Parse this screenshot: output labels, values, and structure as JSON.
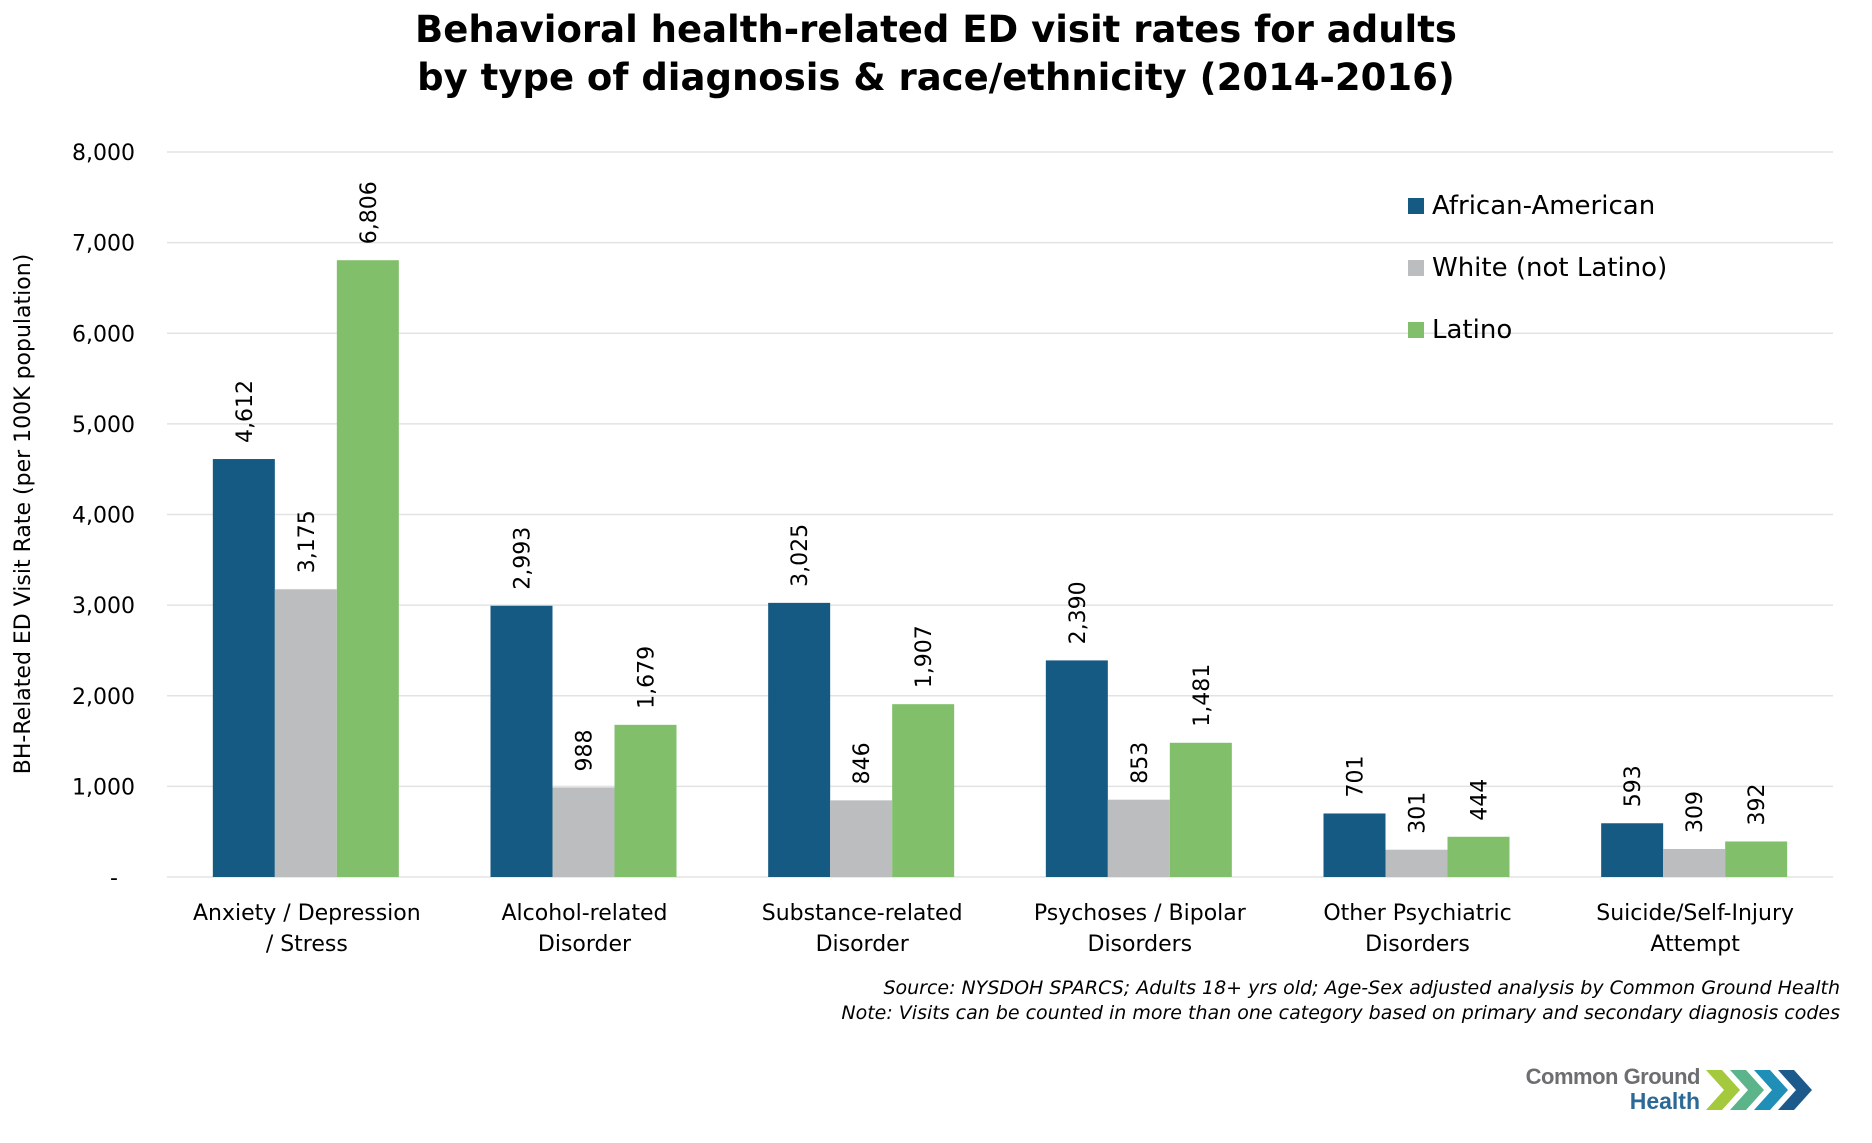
{
  "chart_data": {
    "type": "bar",
    "title": [
      "Behavioral health-related ED visit rates for adults",
      "by type of diagnosis & race/ethnicity (2014-2016)"
    ],
    "xlabel": "",
    "ylabel": "BH-Related ED Visit Rate (per 100K population)",
    "ylim": [
      0,
      8000
    ],
    "yticks": [
      0,
      1000,
      2000,
      3000,
      4000,
      5000,
      6000,
      7000,
      8000
    ],
    "ytick_labels": [
      "-",
      "1,000",
      "2,000",
      "3,000",
      "4,000",
      "5,000",
      "6,000",
      "7,000",
      "8,000"
    ],
    "grid": true,
    "legend_position": "top-right",
    "categories": [
      [
        "Anxiety / Depression",
        "/ Stress"
      ],
      [
        "Alcohol-related",
        "Disorder"
      ],
      [
        "Substance-related",
        "Disorder"
      ],
      [
        "Psychoses / Bipolar",
        "Disorders"
      ],
      [
        "Other Psychiatric",
        "Disorders"
      ],
      [
        "Suicide/Self-Injury",
        "Attempt"
      ]
    ],
    "series": [
      {
        "name": "African-American",
        "color": "#155a82",
        "values": [
          4612,
          2993,
          3025,
          2390,
          701,
          593
        ],
        "labels": [
          "4,612",
          "2,993",
          "3,025",
          "2,390",
          "701",
          "593"
        ]
      },
      {
        "name": "White (not Latino)",
        "color": "#bcbdbf",
        "values": [
          3175,
          988,
          846,
          853,
          301,
          309
        ],
        "labels": [
          "3,175",
          "988",
          "846",
          "853",
          "301",
          "309"
        ]
      },
      {
        "name": "Latino",
        "color": "#81bf6b",
        "values": [
          6806,
          1679,
          1907,
          1481,
          444,
          392
        ],
        "labels": [
          "6,806",
          "1,679",
          "1,907",
          "1,481",
          "444",
          "392"
        ]
      }
    ]
  },
  "footer": {
    "source": "Source: NYSDOH SPARCS; Adults 18+ yrs old; Age-Sex adjusted analysis by Common Ground Health",
    "note": "Note: Visits can be counted in more than one category based on primary and secondary diagnosis codes"
  },
  "logo": {
    "line1": "Common Ground",
    "line2": "Health",
    "chevron_colors": [
      "#a4c93c",
      "#5bb48a",
      "#1f8fb8",
      "#1c5a8c"
    ]
  }
}
